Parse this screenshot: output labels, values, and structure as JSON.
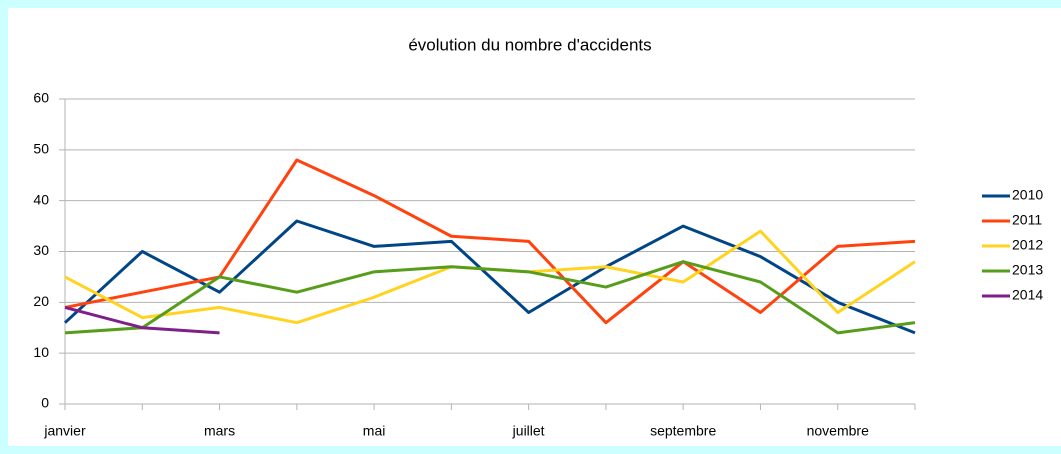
{
  "chart_data": {
    "type": "line",
    "title": "évolution du nombre d'accidents",
    "categories": [
      "janvier",
      null,
      "mars",
      null,
      "mai",
      null,
      "juillet",
      null,
      "septembre",
      null,
      "novembre",
      null
    ],
    "series": [
      {
        "name": "2010",
        "color": "#004586",
        "values": [
          16,
          30,
          22,
          36,
          31,
          32,
          18,
          27,
          35,
          29,
          20,
          14
        ]
      },
      {
        "name": "2011",
        "color": "#ff420e",
        "values": [
          19,
          22,
          25,
          48,
          41,
          33,
          32,
          16,
          28,
          18,
          31,
          32
        ]
      },
      {
        "name": "2012",
        "color": "#ffd320",
        "values": [
          25,
          17,
          19,
          16,
          21,
          27,
          26,
          27,
          24,
          34,
          18,
          28
        ]
      },
      {
        "name": "2013",
        "color": "#579d1c",
        "values": [
          14,
          15,
          25,
          22,
          26,
          27,
          26,
          23,
          28,
          24,
          14,
          16
        ]
      },
      {
        "name": "2014",
        "color": "#7e1f8a",
        "values": [
          19,
          15,
          14,
          null,
          null,
          null,
          null,
          null,
          null,
          null,
          null,
          null
        ]
      }
    ],
    "ylim": [
      0,
      60
    ],
    "yticks": [
      0,
      10,
      20,
      30,
      40,
      50,
      60
    ],
    "grid": true,
    "legend": "right"
  }
}
